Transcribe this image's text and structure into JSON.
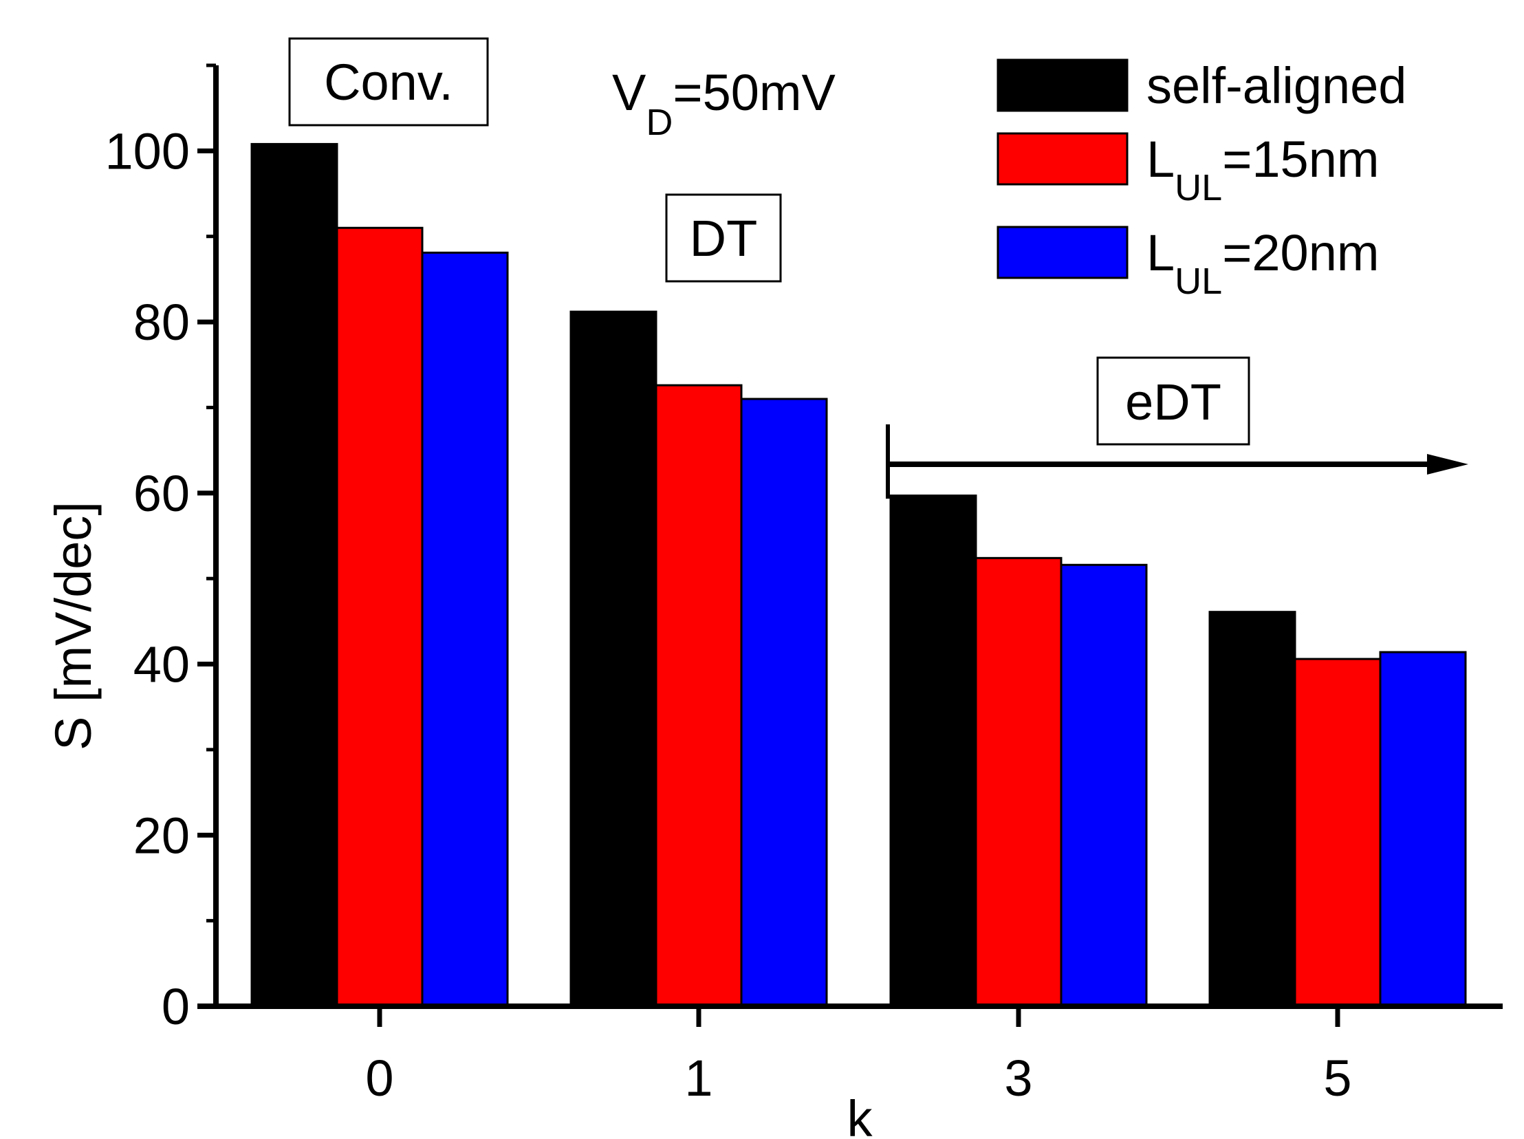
{
  "chart_data": {
    "type": "bar",
    "title": "",
    "xlabel": "k",
    "ylabel": "S [mV/dec]",
    "ylim": [
      0,
      110
    ],
    "yticks": [
      0,
      20,
      40,
      60,
      80,
      100
    ],
    "yticks_minor_step": 10,
    "categories": [
      "0",
      "1",
      "3",
      "5"
    ],
    "series": [
      {
        "name": "self-aligned",
        "label_main": "self-aligned",
        "label_sub": "",
        "label_tail": "",
        "color": "#000000",
        "values": [
          100.8,
          81.2,
          59.7,
          46.1
        ]
      },
      {
        "name": "L_UL=15nm",
        "label_main": "L",
        "label_sub": "UL",
        "label_tail": "=15nm",
        "color": "#ff0000",
        "values": [
          91.0,
          72.6,
          52.4,
          40.6
        ]
      },
      {
        "name": "L_UL=20nm",
        "label_main": "L",
        "label_sub": "UL",
        "label_tail": "=20nm",
        "color": "#0000ff",
        "values": [
          88.1,
          71.0,
          51.6,
          41.4
        ]
      }
    ],
    "annotations": {
      "conv": "Conv.",
      "dt": "DT",
      "edt": "eDT",
      "vd_main": "V",
      "vd_sub": "D",
      "vd_tail": "=50mV"
    },
    "legend_position": "top-right",
    "grid": false
  }
}
